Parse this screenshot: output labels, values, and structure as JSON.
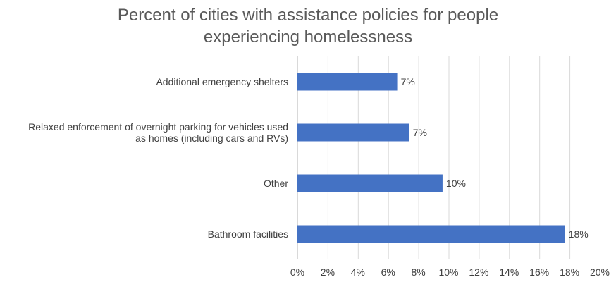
{
  "chart_data": {
    "type": "bar",
    "orientation": "horizontal",
    "title": [
      "Percent of cities with assistance policies for people",
      "experiencing homelessness"
    ],
    "categories": [
      [
        "Additional emergency shelters"
      ],
      [
        "Relaxed enforcement of overnight parking for vehicles used",
        "as homes (including cars and RVs)"
      ],
      [
        "Other"
      ],
      [
        "Bathroom facilities"
      ]
    ],
    "values": [
      6.6,
      7.4,
      9.6,
      17.7
    ],
    "data_labels": [
      "7%",
      "7%",
      "10%",
      "18%"
    ],
    "xlim": [
      0,
      20
    ],
    "x_ticks": [
      0,
      2,
      4,
      6,
      8,
      10,
      12,
      14,
      16,
      18,
      20
    ],
    "x_tick_labels": [
      "0%",
      "2%",
      "4%",
      "6%",
      "8%",
      "10%",
      "12%",
      "14%",
      "16%",
      "18%",
      "20%"
    ],
    "xlabel": "",
    "ylabel": "",
    "grid": true,
    "bar_color": "#4472C4",
    "grid_color": "#D9D9D9"
  }
}
